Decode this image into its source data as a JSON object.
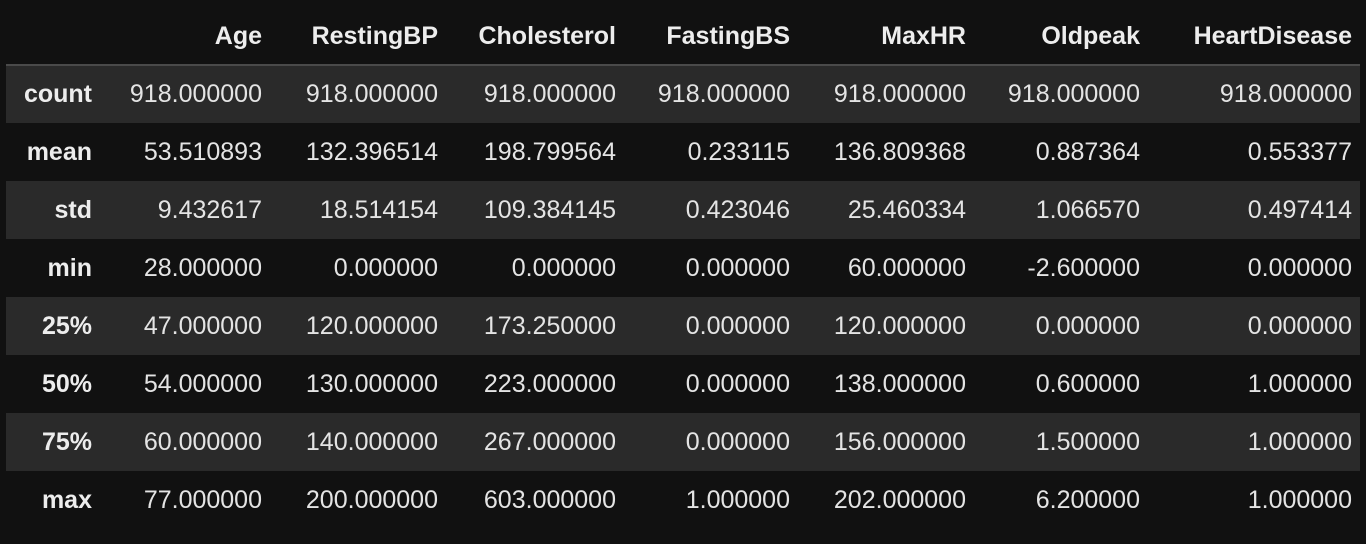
{
  "table": {
    "columns": [
      "",
      "Age",
      "RestingBP",
      "Cholesterol",
      "FastingBS",
      "MaxHR",
      "Oldpeak",
      "HeartDisease"
    ],
    "rows": [
      {
        "label": "count",
        "values": [
          "918.000000",
          "918.000000",
          "918.000000",
          "918.000000",
          "918.000000",
          "918.000000",
          "918.000000"
        ]
      },
      {
        "label": "mean",
        "values": [
          "53.510893",
          "132.396514",
          "198.799564",
          "0.233115",
          "136.809368",
          "0.887364",
          "0.553377"
        ]
      },
      {
        "label": "std",
        "values": [
          "9.432617",
          "18.514154",
          "109.384145",
          "0.423046",
          "25.460334",
          "1.066570",
          "0.497414"
        ]
      },
      {
        "label": "min",
        "values": [
          "28.000000",
          "0.000000",
          "0.000000",
          "0.000000",
          "60.000000",
          "-2.600000",
          "0.000000"
        ]
      },
      {
        "label": "25%",
        "values": [
          "47.000000",
          "120.000000",
          "173.250000",
          "0.000000",
          "120.000000",
          "0.000000",
          "0.000000"
        ]
      },
      {
        "label": "50%",
        "values": [
          "54.000000",
          "130.000000",
          "223.000000",
          "0.000000",
          "138.000000",
          "0.600000",
          "1.000000"
        ]
      },
      {
        "label": "75%",
        "values": [
          "60.000000",
          "140.000000",
          "267.000000",
          "0.000000",
          "156.000000",
          "1.500000",
          "1.000000"
        ]
      },
      {
        "label": "max",
        "values": [
          "77.000000",
          "200.000000",
          "603.000000",
          "1.000000",
          "202.000000",
          "6.200000",
          "1.000000"
        ]
      }
    ]
  }
}
